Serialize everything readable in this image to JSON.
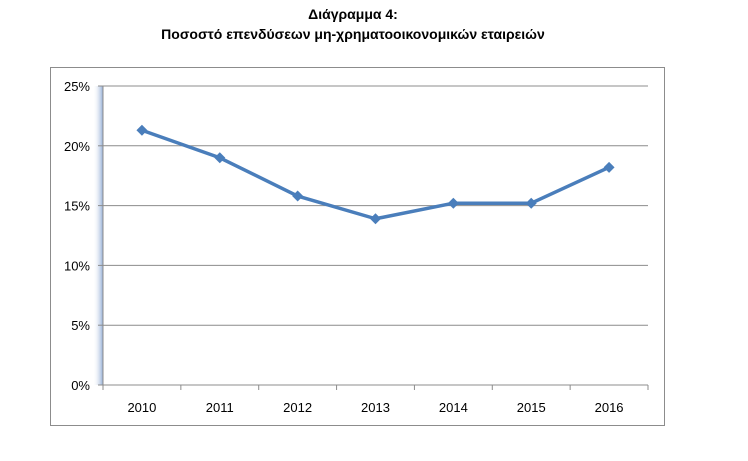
{
  "figure": {
    "title_line1": "Διάγραμμα 4:",
    "title_line2": "Ποσοστό επενδύσεων μη-χρηματοοικονομικών εταιρειών"
  },
  "chart_data": {
    "type": "line",
    "title": "Ποσοστό επενδύσεων μη-χρηματοοικονομικών εταιρειών",
    "categories": [
      "2010",
      "2011",
      "2012",
      "2013",
      "2014",
      "2015",
      "2016"
    ],
    "series": [
      {
        "values": [
          21.3,
          19.0,
          15.8,
          13.9,
          15.2,
          15.2,
          18.2
        ],
        "color": "#4a7ebb",
        "marker": "diamond"
      }
    ],
    "ylim": [
      0,
      25
    ],
    "yticks": [
      0,
      5,
      10,
      15,
      20,
      25
    ],
    "ytick_labels": [
      "0%",
      "5%",
      "10%",
      "15%",
      "20%",
      "25%"
    ],
    "ylabel": "",
    "xlabel": "",
    "grid": "horizontal",
    "legend": "none"
  }
}
